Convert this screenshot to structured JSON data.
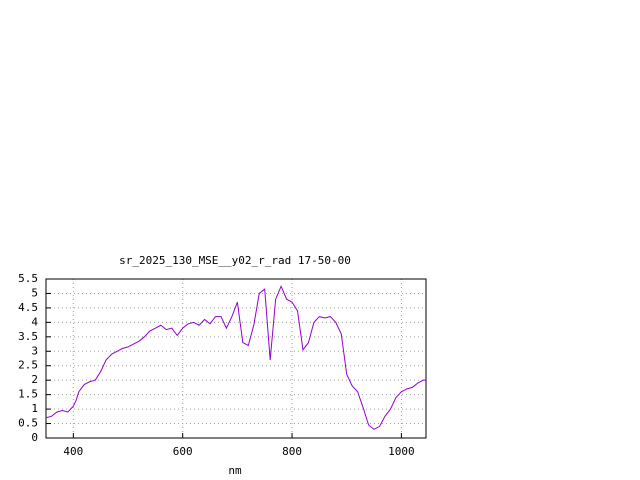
{
  "chart_data": {
    "type": "line",
    "title": "sr_2025_130_MSE__y02_r_rad 17-50-00",
    "x_label": "nm",
    "x": [
      350,
      360,
      370,
      380,
      390,
      400,
      405,
      410,
      420,
      430,
      440,
      450,
      460,
      470,
      480,
      490,
      500,
      510,
      520,
      530,
      540,
      550,
      560,
      570,
      580,
      590,
      600,
      610,
      620,
      630,
      640,
      650,
      660,
      670,
      680,
      690,
      700,
      710,
      720,
      730,
      740,
      750,
      760,
      770,
      780,
      790,
      800,
      810,
      820,
      830,
      840,
      850,
      860,
      870,
      880,
      890,
      900,
      910,
      920,
      930,
      940,
      950,
      960,
      970,
      980,
      990,
      1000,
      1010,
      1020,
      1030,
      1040,
      1045
    ],
    "series": [
      {
        "color": "#9400d3",
        "values": [
          0.7,
          0.75,
          0.9,
          0.95,
          0.9,
          1.1,
          1.3,
          1.6,
          1.85,
          1.95,
          2.0,
          2.3,
          2.7,
          2.9,
          3.0,
          3.1,
          3.15,
          3.25,
          3.35,
          3.5,
          3.7,
          3.8,
          3.9,
          3.75,
          3.8,
          3.55,
          3.8,
          3.95,
          4.0,
          3.9,
          4.1,
          3.95,
          4.2,
          4.2,
          3.8,
          4.2,
          4.7,
          3.3,
          3.2,
          3.9,
          5.0,
          5.15,
          2.7,
          4.8,
          5.25,
          4.8,
          4.7,
          4.4,
          3.05,
          3.3,
          4.0,
          4.2,
          4.15,
          4.2,
          4.0,
          3.6,
          2.2,
          1.8,
          1.6,
          1.05,
          0.45,
          0.3,
          0.4,
          0.75,
          1.0,
          1.4,
          1.6,
          1.7,
          1.75,
          1.9,
          2.0,
          2.0
        ]
      }
    ],
    "xlim": [
      350,
      1045
    ],
    "xticks": [
      400,
      600,
      800,
      1000
    ],
    "ylim": [
      0,
      5.5
    ],
    "yticks": [
      0,
      0.5,
      1,
      1.5,
      2,
      2.5,
      3,
      3.5,
      4,
      4.5,
      5,
      5.5
    ],
    "grid": true
  }
}
